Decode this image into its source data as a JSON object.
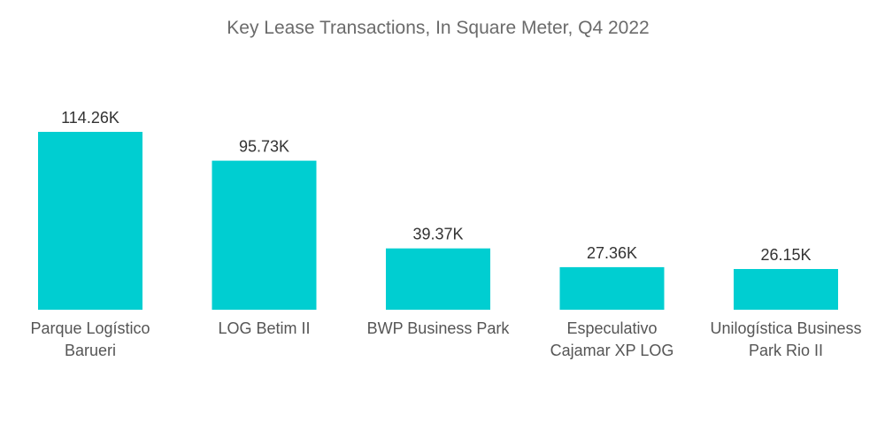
{
  "chart_data": {
    "type": "bar",
    "title": "Key Lease Transactions, In Square Meter, Q4 2022",
    "xlabel": "",
    "ylabel": "",
    "ylim": [
      0,
      114.26
    ],
    "grid": false,
    "legend": "none",
    "bar_color": "#00ced1",
    "categories": [
      [
        "Parque Logístico",
        "Barueri"
      ],
      [
        "LOG Betim II"
      ],
      [
        "BWP Business Park"
      ],
      [
        "Especulativo",
        "Cajamar XP LOG"
      ],
      [
        "Unilogística Business",
        "Park Rio II"
      ]
    ],
    "values": [
      114.26,
      95.73,
      39.37,
      27.36,
      26.15
    ],
    "value_labels": [
      "114.26K",
      "95.73K",
      "39.37K",
      "27.36K",
      "26.15K"
    ]
  }
}
